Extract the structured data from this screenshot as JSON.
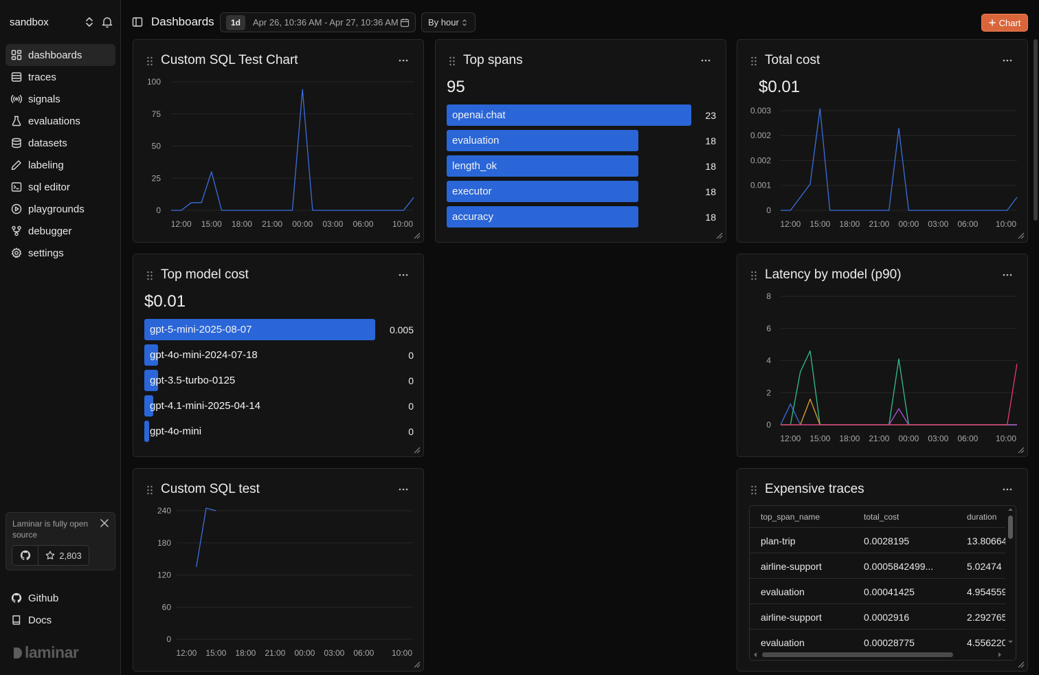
{
  "sidebar": {
    "project": "sandbox",
    "items": [
      {
        "label": "dashboards",
        "icon": "dashboard-icon",
        "active": true
      },
      {
        "label": "traces",
        "icon": "traces-icon"
      },
      {
        "label": "signals",
        "icon": "signal-icon"
      },
      {
        "label": "evaluations",
        "icon": "flask-icon"
      },
      {
        "label": "datasets",
        "icon": "database-icon"
      },
      {
        "label": "labeling",
        "icon": "pen-icon"
      },
      {
        "label": "sql editor",
        "icon": "terminal-icon"
      },
      {
        "label": "playgrounds",
        "icon": "play-icon"
      },
      {
        "label": "debugger",
        "icon": "debugger-icon"
      },
      {
        "label": "settings",
        "icon": "gear-icon"
      }
    ],
    "promo": {
      "text": "Laminar is fully open source",
      "stars": "2,803"
    },
    "footer": [
      {
        "label": "Github",
        "icon": "github-icon"
      },
      {
        "label": "Docs",
        "icon": "book-icon"
      }
    ],
    "logo_text": "laminar"
  },
  "header": {
    "title": "Dashboards",
    "range_badge": "1d",
    "range_text": "Apr 26, 10:36 AM - Apr 27, 10:36 AM",
    "granularity": "By hour",
    "add_chart_label": "Chart"
  },
  "colors": {
    "accent": "#d9663b",
    "bar": "#2a66d8",
    "line": "#3b6fe0"
  },
  "cards": {
    "sql_chart": {
      "title": "Custom SQL Test Chart"
    },
    "top_spans": {
      "title": "Top spans",
      "total": "95"
    },
    "total_cost": {
      "title": "Total cost",
      "total": "$0.01"
    },
    "top_model_cost": {
      "title": "Top model cost",
      "total": "$0.01"
    },
    "latency": {
      "title": "Latency by model (p90)"
    },
    "sql_test": {
      "title": "Custom SQL test"
    },
    "expensive": {
      "title": "Expensive traces",
      "columns": [
        "top_span_name",
        "total_cost",
        "duration"
      ],
      "rows": [
        [
          "plan-trip",
          "0.0028195",
          "13.80664"
        ],
        [
          "airline-support",
          "0.0005842499...",
          "5.02474"
        ],
        [
          "evaluation",
          "0.00041425",
          "4.954559"
        ],
        [
          "airline-support",
          "0.0002916",
          "2.292765"
        ],
        [
          "evaluation",
          "0.00028775",
          "4.556220"
        ]
      ]
    }
  },
  "chart_data": [
    {
      "id": "sql_chart",
      "type": "line",
      "title": "Custom SQL Test Chart",
      "x": [
        "11:00",
        "12:00",
        "13:00",
        "14:00",
        "15:00",
        "16:00",
        "17:00",
        "18:00",
        "19:00",
        "20:00",
        "21:00",
        "22:00",
        "23:00",
        "00:00",
        "01:00",
        "02:00",
        "03:00",
        "04:00",
        "05:00",
        "06:00",
        "07:00",
        "08:00",
        "09:00",
        "10:00",
        "11:00"
      ],
      "xticks": [
        "12:00",
        "15:00",
        "18:00",
        "21:00",
        "00:00",
        "03:00",
        "06:00",
        "10:00"
      ],
      "yticks": [
        0,
        25,
        50,
        75,
        100
      ],
      "ylim": [
        0,
        100
      ],
      "series": [
        {
          "values": [
            0,
            0,
            6,
            6,
            30,
            0,
            0,
            0,
            0,
            0,
            0,
            0,
            0,
            94,
            0,
            0,
            0,
            0,
            0,
            0,
            0,
            0,
            0,
            0,
            10
          ],
          "color": "#3b6fe0"
        }
      ]
    },
    {
      "id": "top_spans",
      "type": "bar",
      "title": "Top spans",
      "categories": [
        "openai.chat",
        "evaluation",
        "length_ok",
        "executor",
        "accuracy"
      ],
      "values": [
        23,
        18,
        18,
        18,
        18
      ]
    },
    {
      "id": "total_cost",
      "type": "line",
      "title": "Total cost",
      "x": [
        "11:00",
        "12:00",
        "13:00",
        "14:00",
        "15:00",
        "16:00",
        "17:00",
        "18:00",
        "19:00",
        "20:00",
        "21:00",
        "22:00",
        "23:00",
        "00:00",
        "01:00",
        "02:00",
        "03:00",
        "04:00",
        "05:00",
        "06:00",
        "07:00",
        "08:00",
        "09:00",
        "10:00",
        "11:00"
      ],
      "xticks": [
        "12:00",
        "15:00",
        "18:00",
        "21:00",
        "00:00",
        "03:00",
        "06:00",
        "10:00"
      ],
      "ytick_labels": [
        "0",
        "0.001",
        "0.002",
        "0.002",
        "0.003"
      ],
      "ylim": [
        0,
        0.0031
      ],
      "series": [
        {
          "values": [
            0,
            0,
            0.0004,
            0.0008,
            0.0031,
            0,
            0,
            0,
            0,
            0,
            0,
            0,
            0.0025,
            0,
            0,
            0,
            0,
            0,
            0,
            0,
            0,
            0,
            0,
            0,
            0.0004
          ],
          "color": "#3b6fe0"
        }
      ]
    },
    {
      "id": "top_model_cost",
      "type": "bar",
      "title": "Top model cost",
      "categories": [
        "gpt-5-mini-2025-08-07",
        "gpt-4o-mini-2024-07-18",
        "gpt-3.5-turbo-0125",
        "gpt-4.1-mini-2025-04-14",
        "gpt-4o-mini"
      ],
      "values": [
        0.005,
        0.0003,
        0.0003,
        0.0002,
        0.0001
      ],
      "labels": [
        "0.005",
        "0",
        "0",
        "0",
        "0"
      ]
    },
    {
      "id": "latency",
      "type": "line",
      "title": "Latency by model (p90)",
      "x": [
        "11:00",
        "12:00",
        "13:00",
        "14:00",
        "15:00",
        "16:00",
        "17:00",
        "18:00",
        "19:00",
        "20:00",
        "21:00",
        "22:00",
        "23:00",
        "00:00",
        "01:00",
        "02:00",
        "03:00",
        "04:00",
        "05:00",
        "06:00",
        "07:00",
        "08:00",
        "09:00",
        "10:00",
        "11:00"
      ],
      "xticks": [
        "12:00",
        "15:00",
        "18:00",
        "21:00",
        "00:00",
        "03:00",
        "06:00",
        "10:00"
      ],
      "yticks": [
        0,
        2,
        4,
        6,
        8
      ],
      "ylim": [
        0,
        8
      ],
      "series": [
        {
          "values": [
            0,
            1.3,
            0,
            0,
            0,
            0,
            0,
            0,
            0,
            0,
            0,
            0,
            0,
            0,
            0,
            0,
            0,
            0,
            0,
            0,
            0,
            0,
            0,
            0,
            0
          ],
          "color": "#3b6fe0"
        },
        {
          "values": [
            0,
            0,
            3.3,
            4.6,
            0,
            0,
            0,
            0,
            0,
            0,
            0,
            0,
            4.1,
            0,
            0,
            0,
            0,
            0,
            0,
            0,
            0,
            0,
            0,
            0,
            0
          ],
          "color": "#34c08a"
        },
        {
          "values": [
            0,
            0,
            0,
            1.6,
            0,
            0,
            0,
            0,
            0,
            0,
            0,
            0,
            0,
            0,
            0,
            0,
            0,
            0,
            0,
            0,
            0,
            0,
            0,
            0,
            0
          ],
          "color": "#e0a030"
        },
        {
          "values": [
            0,
            0,
            0,
            0,
            0,
            0,
            0,
            0,
            0,
            0,
            0,
            0,
            1.0,
            0,
            0,
            0,
            0,
            0,
            0,
            0,
            0,
            0,
            0,
            0,
            0
          ],
          "color": "#b050d8"
        },
        {
          "values": [
            0,
            0,
            0,
            0,
            0,
            0,
            0,
            0,
            0,
            0,
            0,
            0,
            0,
            0,
            0,
            0,
            0,
            0,
            0,
            0,
            0,
            0,
            0,
            0,
            3.8
          ],
          "color": "#e83a6a"
        }
      ]
    },
    {
      "id": "sql_test",
      "type": "line",
      "title": "Custom SQL test",
      "x": [
        "11:00",
        "12:00",
        "13:00",
        "14:00",
        "15:00",
        "16:00",
        "17:00",
        "18:00",
        "19:00",
        "20:00",
        "21:00",
        "22:00",
        "23:00",
        "00:00",
        "01:00",
        "02:00",
        "03:00",
        "04:00",
        "05:00",
        "06:00",
        "07:00",
        "08:00",
        "09:00",
        "10:00",
        "11:00"
      ],
      "xticks": [
        "12:00",
        "15:00",
        "18:00",
        "21:00",
        "00:00",
        "03:00",
        "06:00",
        "10:00"
      ],
      "yticks": [
        0,
        60,
        120,
        180,
        240
      ],
      "ylim": [
        0,
        240
      ],
      "series": [
        {
          "values": [
            null,
            null,
            135,
            245,
            240,
            null,
            null,
            null,
            null,
            null,
            null,
            null,
            null,
            null,
            null,
            null,
            null,
            null,
            null,
            null,
            null,
            null,
            null,
            null,
            null
          ],
          "color": "#3b6fe0"
        }
      ]
    }
  ]
}
